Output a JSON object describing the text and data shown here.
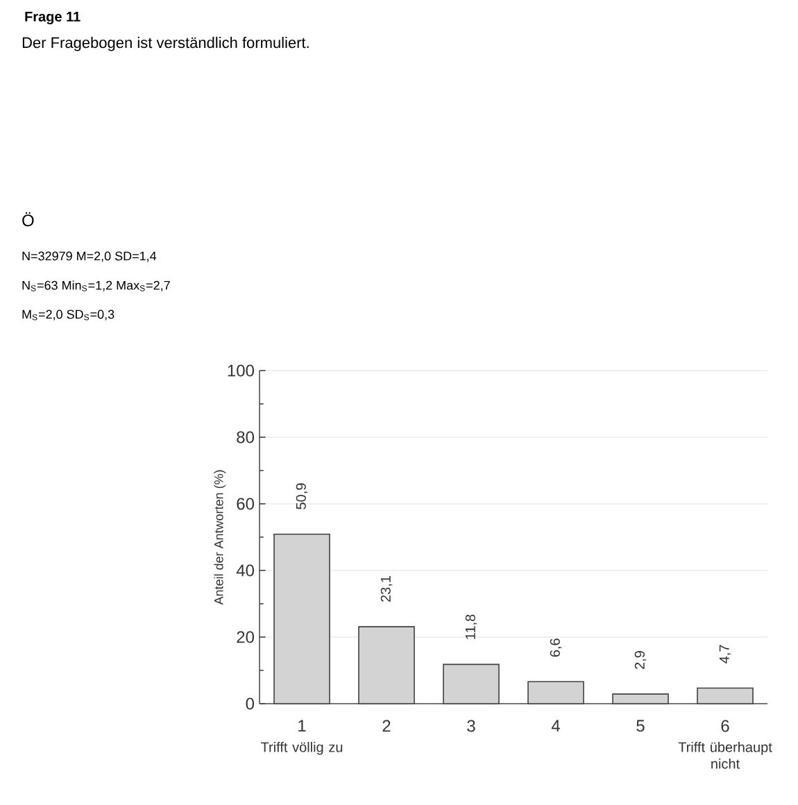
{
  "chart_data": {
    "type": "bar",
    "title": "Frage 11",
    "subtitle": "Der Fragebogen ist verständlich formuliert.",
    "ylabel": "Anteil der Antworten (%)",
    "categories": [
      "1",
      "2",
      "3",
      "4",
      "5",
      "6"
    ],
    "values": [
      50.9,
      23.1,
      11.8,
      6.6,
      2.9,
      4.7
    ],
    "value_labels": [
      "50,9",
      "23,1",
      "11,8",
      "6,6",
      "2,9",
      "4,7"
    ],
    "color": "#d3d3d3",
    "ylim": [
      0,
      100
    ],
    "yticks": [
      0,
      20,
      40,
      60,
      80,
      100
    ],
    "grid": "y",
    "annotations": [
      "Ö",
      "N=32979 M=2,0 SD=1,4",
      "N$_{S}$=63 Min$_{S}$=1,2 Max$_{S}$=2,7",
      "M$_{S}$=2,0 SD$_{S}$=0,3",
      "Trifft völlig zu",
      "Trifft überhaupt nicht"
    ]
  }
}
